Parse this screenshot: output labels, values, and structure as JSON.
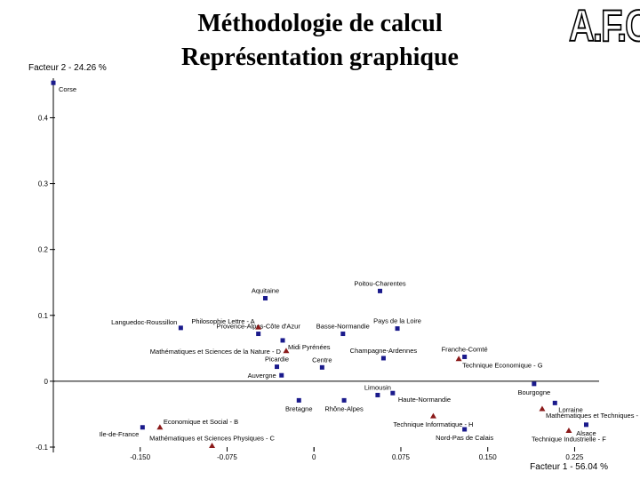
{
  "header": {
    "title_line1": "Méthodologie de calcul",
    "title_line2": "Représentation graphique",
    "logo_text": "A.F.C."
  },
  "chart_data": {
    "type": "scatter",
    "xlabel": "Facteur 1 - 56.04 %",
    "ylabel": "Facteur 2 - 24.26 %",
    "xlim": [
      -0.225,
      0.24
    ],
    "ylim": [
      -0.1,
      0.46
    ],
    "x_ticks": [
      {
        "v": -0.15,
        "label": "-0.150"
      },
      {
        "v": -0.075,
        "label": "-0.075"
      },
      {
        "v": 0,
        "label": "0"
      },
      {
        "v": 0.075,
        "label": "0.075"
      },
      {
        "v": 0.15,
        "label": "0.150"
      },
      {
        "v": 0.225,
        "label": "0.225"
      }
    ],
    "y_ticks": [
      {
        "v": 0.4,
        "label": "0.4"
      },
      {
        "v": 0.3,
        "label": "0.3"
      },
      {
        "v": 0.2,
        "label": "0.2"
      },
      {
        "v": 0.1,
        "label": "0.1"
      },
      {
        "v": 0,
        "label": "0"
      },
      {
        "v": -0.1,
        "label": "-0.1"
      }
    ],
    "colors": {
      "regions": "#1a1a8c",
      "specialties": "#8b1a1a",
      "axis": "#000000"
    },
    "series": [
      {
        "marker": "square",
        "points": [
          {
            "label": "Corse",
            "x": -0.225,
            "y": 0.453,
            "anchor": "right"
          },
          {
            "label": "Aquitaine",
            "x": -0.042,
            "y": 0.126,
            "anchor": "above"
          },
          {
            "label": "Poitou-Charentes",
            "x": 0.057,
            "y": 0.137,
            "anchor": "above"
          },
          {
            "label": "Languedoc-Roussillon",
            "x": -0.115,
            "y": 0.081,
            "anchor": "above-left"
          },
          {
            "label": "Provence-Alpes-Côte d'Azur",
            "x": -0.048,
            "y": 0.072,
            "anchor": "above"
          },
          {
            "label": "Basse-Normandie",
            "x": 0.025,
            "y": 0.072,
            "anchor": "above"
          },
          {
            "label": "Pays de la Loire",
            "x": 0.072,
            "y": 0.08,
            "anchor": "above"
          },
          {
            "label": "Midi Pyrénées",
            "x": -0.027,
            "y": 0.062,
            "anchor": "right"
          },
          {
            "label": "Champagne-Ardennes",
            "x": 0.06,
            "y": 0.035,
            "anchor": "above"
          },
          {
            "label": "Picardie",
            "x": -0.032,
            "y": 0.022,
            "anchor": "above"
          },
          {
            "label": "Centre",
            "x": 0.007,
            "y": 0.021,
            "anchor": "above"
          },
          {
            "label": "Franche-Comté",
            "x": 0.13,
            "y": 0.037,
            "anchor": "above"
          },
          {
            "label": "Auvergne",
            "x": -0.028,
            "y": 0.009,
            "anchor": "left"
          },
          {
            "label": "Limousin",
            "x": 0.055,
            "y": -0.021,
            "anchor": "above"
          },
          {
            "label": "Haute-Normandie",
            "x": 0.068,
            "y": -0.018,
            "anchor": "right"
          },
          {
            "label": "Bourgogne",
            "x": 0.19,
            "y": -0.004,
            "anchor": "below"
          },
          {
            "label": "Bretagne",
            "x": -0.013,
            "y": -0.029,
            "anchor": "below"
          },
          {
            "label": "Rhône-Alpes",
            "x": 0.026,
            "y": -0.029,
            "anchor": "below"
          },
          {
            "label": "Lorraine",
            "x": 0.208,
            "y": -0.033,
            "anchor": "below-right"
          },
          {
            "label": "Ile-de-France",
            "x": -0.148,
            "y": -0.07,
            "anchor": "below-left"
          },
          {
            "label": "Nord-Pas de Calais",
            "x": 0.13,
            "y": -0.073,
            "anchor": "below"
          },
          {
            "label": "Alsace",
            "x": 0.235,
            "y": -0.066,
            "anchor": "below"
          }
        ]
      },
      {
        "marker": "triangle",
        "points": [
          {
            "label": "Philosophie Lettre - A",
            "x": -0.048,
            "y": 0.082,
            "anchor": "above-left"
          },
          {
            "label": "Mathématiques et Sciences de la Nature - D",
            "x": -0.024,
            "y": 0.046,
            "anchor": "left"
          },
          {
            "label": "Technique Economique - G",
            "x": 0.125,
            "y": 0.034,
            "anchor": "below-right"
          },
          {
            "label": "Economique et Social - B",
            "x": -0.133,
            "y": -0.07,
            "anchor": "above-right"
          },
          {
            "label": "Mathématiques et Sciences Physiques - C",
            "x": -0.088,
            "y": -0.098,
            "anchor": "above"
          },
          {
            "label": "Technique Informatique - H",
            "x": 0.103,
            "y": -0.053,
            "anchor": "below"
          },
          {
            "label": "Mathématiques et Techniques - E",
            "x": 0.197,
            "y": -0.042,
            "anchor": "below-right"
          },
          {
            "label": "Technique Industrielle - F",
            "x": 0.22,
            "y": -0.075,
            "anchor": "below"
          }
        ]
      }
    ]
  }
}
